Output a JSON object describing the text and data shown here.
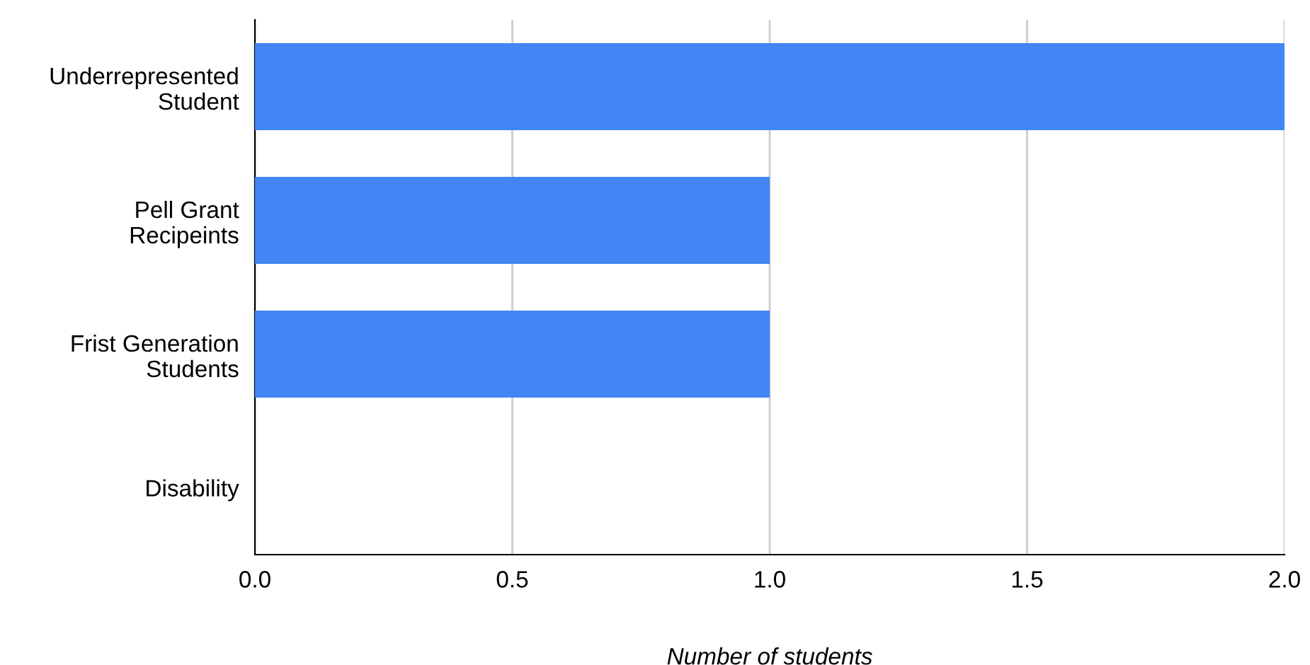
{
  "chart_data": {
    "type": "bar",
    "orientation": "horizontal",
    "categories": [
      "Underrepresented\nStudent",
      "Pell Grant\nRecipeints",
      "Frist Generation\nStudents",
      "Disability"
    ],
    "values": [
      2,
      1,
      1,
      0
    ],
    "color": "#4285f4",
    "xlabel": "Number of students",
    "xlim": [
      0,
      2
    ],
    "xticks": [
      {
        "value": 0,
        "label": "0.0"
      },
      {
        "value": 0.5,
        "label": "0.5"
      },
      {
        "value": 1,
        "label": "1.0"
      },
      {
        "value": 1.5,
        "label": "1.5"
      },
      {
        "value": 2,
        "label": "2.0"
      }
    ],
    "grid": "x"
  }
}
